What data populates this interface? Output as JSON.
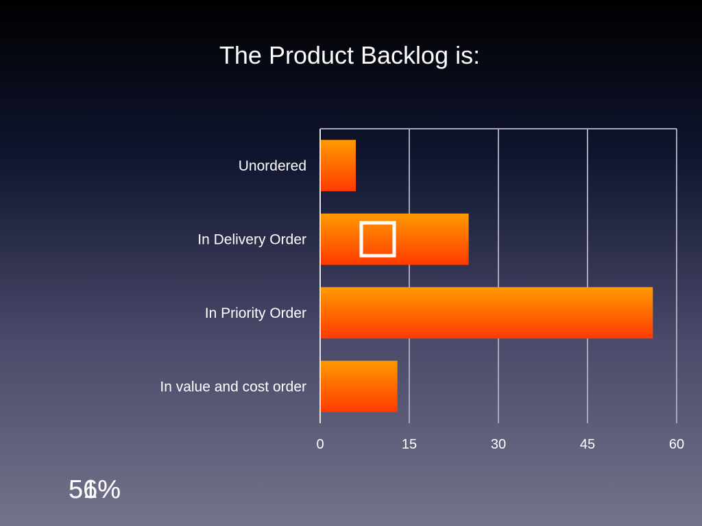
{
  "slide": {
    "overlay_texts": [
      "56%",
      "51%"
    ]
  },
  "chart_data": {
    "type": "bar",
    "orientation": "horizontal",
    "title": "The Product Backlog is:",
    "categories": [
      "Unordered",
      "In Delivery Order",
      "In Priority Order",
      "In value and cost order"
    ],
    "values": [
      6,
      25,
      56,
      13
    ],
    "xlim": [
      0,
      60
    ],
    "xticks": [
      "0",
      "15",
      "30",
      "45",
      "60"
    ],
    "grid": true,
    "legend": "none",
    "bar_gradient": [
      "#ff9a00",
      "#ff3a00"
    ],
    "highlight_category": "In Delivery Order"
  }
}
